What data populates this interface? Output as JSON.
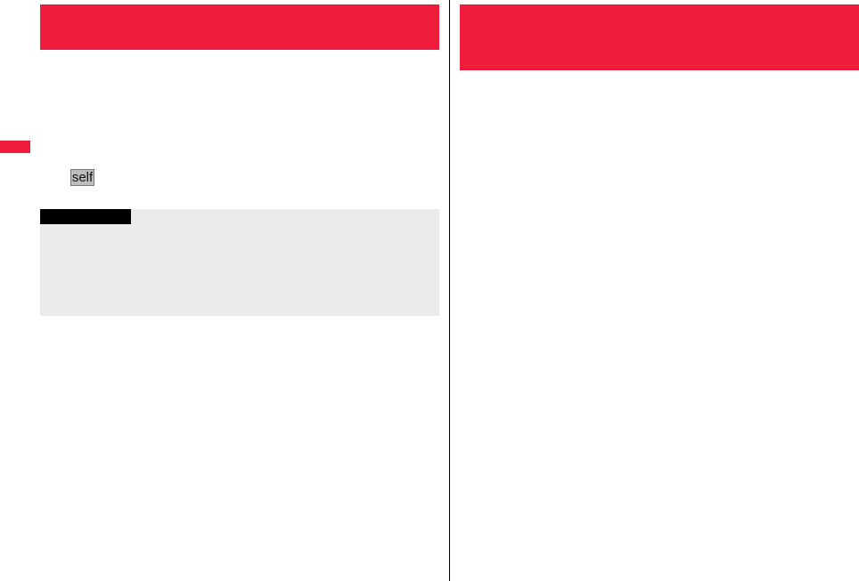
{
  "colors": {
    "accent": "#ef1c3c",
    "note_background": "#ebebeb",
    "note_label": "#000000"
  },
  "left_page": {
    "key_icon": {
      "label": "self"
    }
  }
}
